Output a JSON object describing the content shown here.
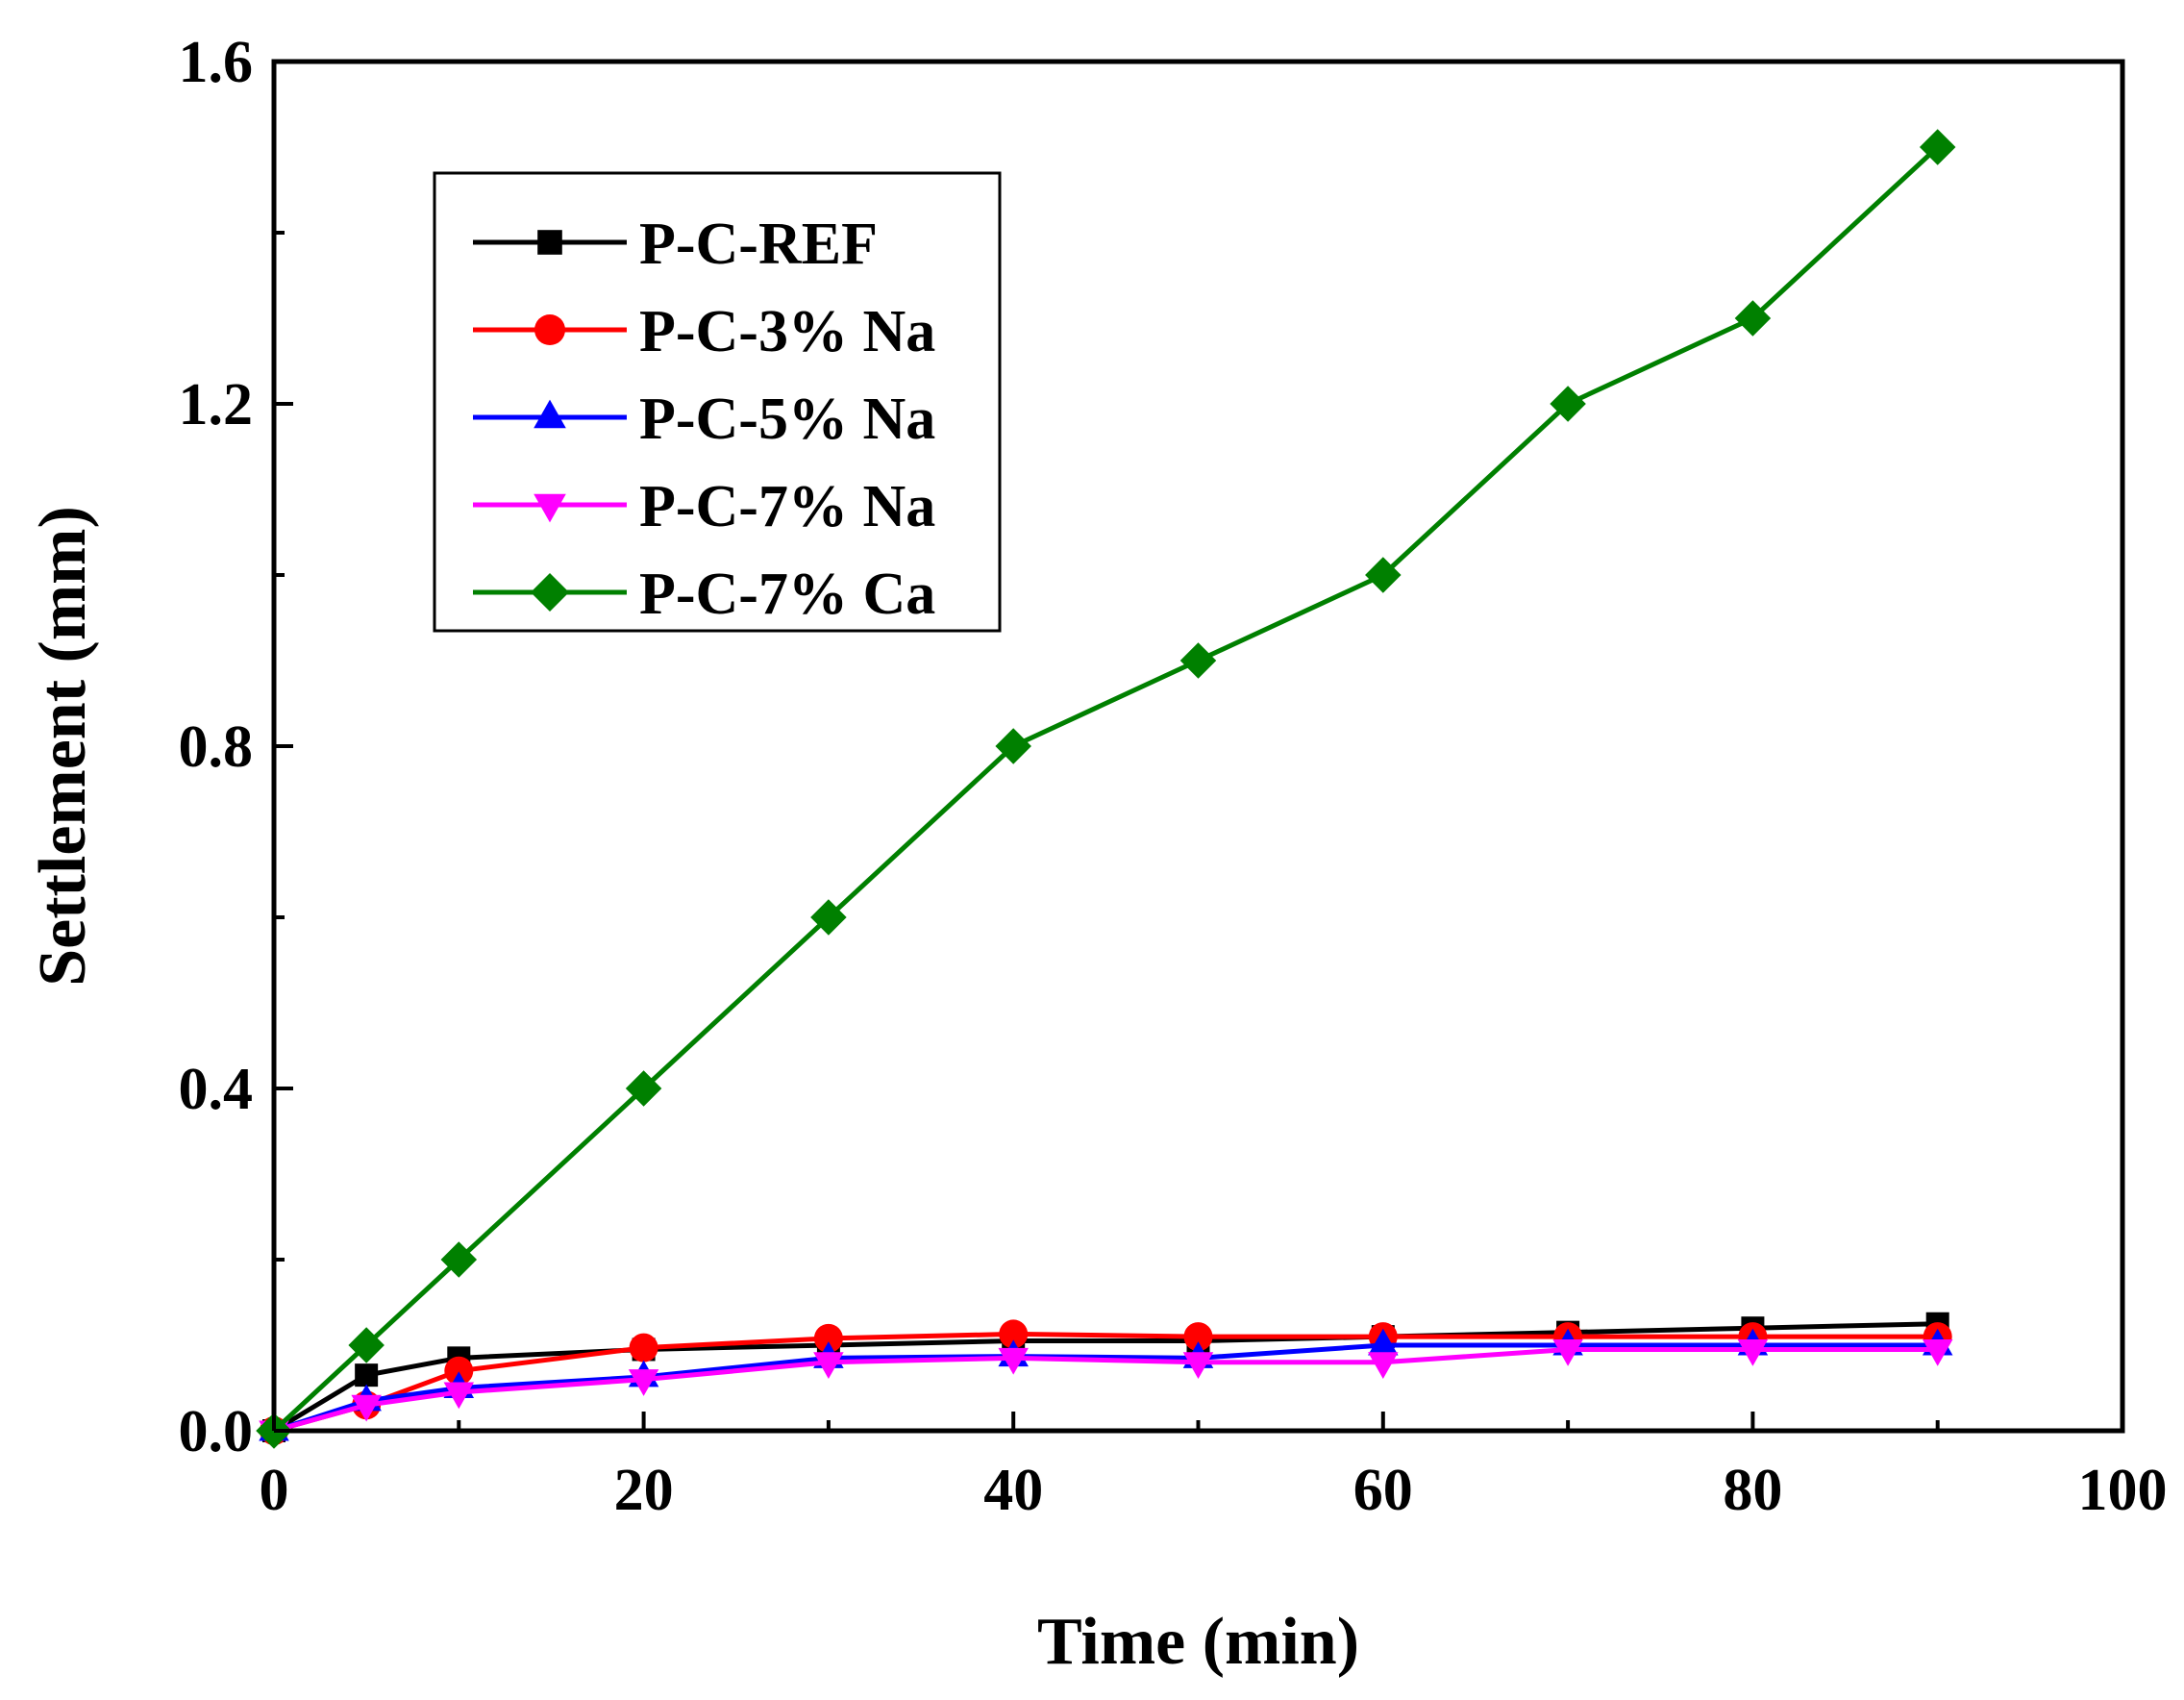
{
  "chart_data": {
    "type": "line",
    "title": "",
    "xlabel": "Time (min)",
    "ylabel": "Settlement (mm)",
    "xlim": [
      0,
      100
    ],
    "ylim": [
      0,
      1.6
    ],
    "xticks": [
      "0",
      "20",
      "40",
      "60",
      "80",
      "100"
    ],
    "yticks": [
      "0.0",
      "0.4",
      "0.8",
      "1.2",
      "1.6"
    ],
    "grid": false,
    "legend_position": "top-left",
    "x": [
      0,
      5,
      10,
      20,
      30,
      40,
      50,
      60,
      70,
      80,
      90
    ],
    "series": [
      {
        "name": "P-C-REF",
        "color": "#000000",
        "marker": "square",
        "values": [
          0,
          0.065,
          0.085,
          0.095,
          0.1,
          0.105,
          0.105,
          0.11,
          0.115,
          0.12,
          0.125
        ]
      },
      {
        "name": "P-C-3% Na",
        "color": "#ff0000",
        "marker": "circle",
        "values": [
          0,
          0.03,
          0.07,
          0.097,
          0.108,
          0.113,
          0.11,
          0.11,
          0.11,
          0.11,
          0.11
        ]
      },
      {
        "name": "P-C-5% Na",
        "color": "#0000ff",
        "marker": "triangle-up",
        "values": [
          0,
          0.035,
          0.05,
          0.063,
          0.085,
          0.087,
          0.085,
          0.1,
          0.1,
          0.1,
          0.1
        ]
      },
      {
        "name": "P-C-7% Na",
        "color": "#ff00ff",
        "marker": "triangle-down",
        "values": [
          0,
          0.03,
          0.045,
          0.06,
          0.08,
          0.085,
          0.08,
          0.08,
          0.095,
          0.095,
          0.095
        ]
      },
      {
        "name": "P-C-7% Ca",
        "color": "#008000",
        "marker": "diamond",
        "values": [
          0,
          0.1,
          0.2,
          0.4,
          0.6,
          0.8,
          0.9,
          1.0,
          1.2,
          1.3,
          1.5
        ]
      }
    ]
  }
}
